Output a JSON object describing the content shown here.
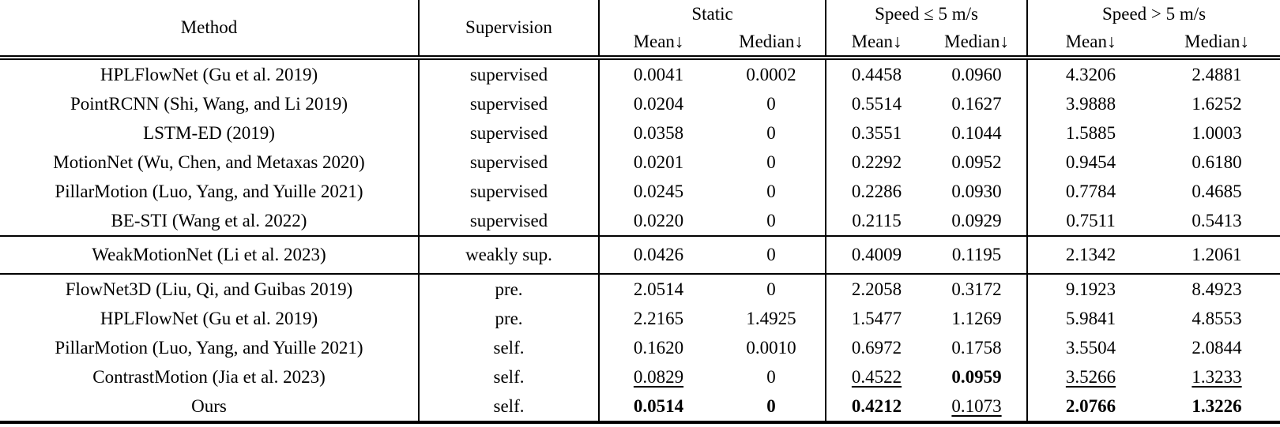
{
  "table": {
    "col_headers": {
      "method": "Method",
      "supervision": "Supervision",
      "groups": [
        {
          "label": "Static",
          "sub": [
            "Mean↓",
            "Median↓"
          ]
        },
        {
          "label": "Speed ≤ 5 m/s",
          "sub": [
            "Mean↓",
            "Median↓"
          ]
        },
        {
          "label": "Speed > 5 m/s",
          "sub": [
            "Mean↓",
            "Median↓"
          ]
        }
      ]
    },
    "rows": [
      {
        "group": 1,
        "method": "HPLFlowNet (Gu et al. 2019)",
        "supervision": "supervised",
        "values": [
          {
            "v": "0.0041",
            "s": ""
          },
          {
            "v": "0.0002",
            "s": ""
          },
          {
            "v": "0.4458",
            "s": ""
          },
          {
            "v": "0.0960",
            "s": ""
          },
          {
            "v": "4.3206",
            "s": ""
          },
          {
            "v": "2.4881",
            "s": ""
          }
        ]
      },
      {
        "group": 1,
        "method": "PointRCNN (Shi, Wang, and Li 2019)",
        "supervision": "supervised",
        "values": [
          {
            "v": "0.0204",
            "s": ""
          },
          {
            "v": "0",
            "s": ""
          },
          {
            "v": "0.5514",
            "s": ""
          },
          {
            "v": "0.1627",
            "s": ""
          },
          {
            "v": "3.9888",
            "s": ""
          },
          {
            "v": "1.6252",
            "s": ""
          }
        ]
      },
      {
        "group": 1,
        "method": "LSTM-ED (2019)",
        "supervision": "supervised",
        "values": [
          {
            "v": "0.0358",
            "s": ""
          },
          {
            "v": "0",
            "s": ""
          },
          {
            "v": "0.3551",
            "s": ""
          },
          {
            "v": "0.1044",
            "s": ""
          },
          {
            "v": "1.5885",
            "s": ""
          },
          {
            "v": "1.0003",
            "s": ""
          }
        ]
      },
      {
        "group": 1,
        "method": "MotionNet (Wu, Chen, and Metaxas 2020)",
        "supervision": "supervised",
        "values": [
          {
            "v": "0.0201",
            "s": ""
          },
          {
            "v": "0",
            "s": ""
          },
          {
            "v": "0.2292",
            "s": ""
          },
          {
            "v": "0.0952",
            "s": ""
          },
          {
            "v": "0.9454",
            "s": ""
          },
          {
            "v": "0.6180",
            "s": ""
          }
        ]
      },
      {
        "group": 1,
        "method": "PillarMotion (Luo, Yang, and Yuille 2021)",
        "supervision": "supervised",
        "values": [
          {
            "v": "0.0245",
            "s": ""
          },
          {
            "v": "0",
            "s": ""
          },
          {
            "v": "0.2286",
            "s": ""
          },
          {
            "v": "0.0930",
            "s": ""
          },
          {
            "v": "0.7784",
            "s": ""
          },
          {
            "v": "0.4685",
            "s": ""
          }
        ]
      },
      {
        "group": 1,
        "method": "BE-STI (Wang et al. 2022)",
        "supervision": "supervised",
        "values": [
          {
            "v": "0.0220",
            "s": ""
          },
          {
            "v": "0",
            "s": ""
          },
          {
            "v": "0.2115",
            "s": ""
          },
          {
            "v": "0.0929",
            "s": ""
          },
          {
            "v": "0.7511",
            "s": ""
          },
          {
            "v": "0.5413",
            "s": ""
          }
        ]
      },
      {
        "group": 2,
        "method": "WeakMotionNet (Li et al. 2023)",
        "supervision": "weakly sup.",
        "values": [
          {
            "v": "0.0426",
            "s": ""
          },
          {
            "v": "0",
            "s": ""
          },
          {
            "v": "0.4009",
            "s": ""
          },
          {
            "v": "0.1195",
            "s": ""
          },
          {
            "v": "2.1342",
            "s": ""
          },
          {
            "v": "1.2061",
            "s": ""
          }
        ]
      },
      {
        "group": 3,
        "method": "FlowNet3D (Liu, Qi, and Guibas 2019)",
        "supervision": "pre.",
        "values": [
          {
            "v": "2.0514",
            "s": ""
          },
          {
            "v": "0",
            "s": ""
          },
          {
            "v": "2.2058",
            "s": ""
          },
          {
            "v": "0.3172",
            "s": ""
          },
          {
            "v": "9.1923",
            "s": ""
          },
          {
            "v": "8.4923",
            "s": ""
          }
        ]
      },
      {
        "group": 3,
        "method": "HPLFlowNet (Gu et al. 2019)",
        "supervision": "pre.",
        "values": [
          {
            "v": "2.2165",
            "s": ""
          },
          {
            "v": "1.4925",
            "s": ""
          },
          {
            "v": "1.5477",
            "s": ""
          },
          {
            "v": "1.1269",
            "s": ""
          },
          {
            "v": "5.9841",
            "s": ""
          },
          {
            "v": "4.8553",
            "s": ""
          }
        ]
      },
      {
        "group": 3,
        "method": "PillarMotion (Luo, Yang, and Yuille 2021)",
        "supervision": "self.",
        "values": [
          {
            "v": "0.1620",
            "s": ""
          },
          {
            "v": "0.0010",
            "s": ""
          },
          {
            "v": "0.6972",
            "s": ""
          },
          {
            "v": "0.1758",
            "s": ""
          },
          {
            "v": "3.5504",
            "s": ""
          },
          {
            "v": "2.0844",
            "s": ""
          }
        ]
      },
      {
        "group": 3,
        "method": "ContrastMotion (Jia et al. 2023)",
        "supervision": "self.",
        "values": [
          {
            "v": "0.0829",
            "s": "u"
          },
          {
            "v": "0",
            "s": ""
          },
          {
            "v": "0.4522",
            "s": "u"
          },
          {
            "v": "0.0959",
            "s": "b"
          },
          {
            "v": "3.5266",
            "s": "u"
          },
          {
            "v": "1.3233",
            "s": "u"
          }
        ]
      },
      {
        "group": 3,
        "method": "Ours",
        "supervision": "self.",
        "values": [
          {
            "v": "0.0514",
            "s": "b"
          },
          {
            "v": "0",
            "s": "b"
          },
          {
            "v": "0.4212",
            "s": "b"
          },
          {
            "v": "0.1073",
            "s": "u"
          },
          {
            "v": "2.0766",
            "s": "b"
          },
          {
            "v": "1.3226",
            "s": "b"
          }
        ]
      }
    ]
  },
  "colors": {
    "text": "#000000",
    "background": "#ffffff",
    "rule": "#000000"
  }
}
